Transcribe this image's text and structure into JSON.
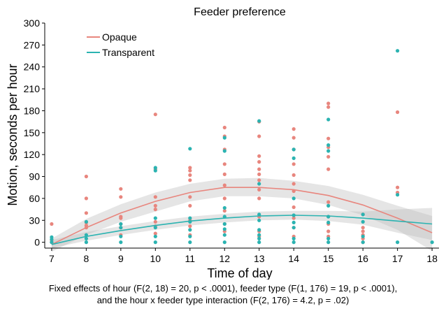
{
  "chart_data": {
    "type": "scatter",
    "title": "Feeder preference",
    "xlabel": "Time of day",
    "ylabel": "Motion, seconds per hour",
    "xlim": [
      6.8,
      18.2
    ],
    "ylim": [
      -8,
      300
    ],
    "xticks": [
      7,
      8,
      9,
      10,
      11,
      12,
      13,
      14,
      15,
      16,
      17,
      18
    ],
    "yticks": [
      0,
      30,
      60,
      90,
      120,
      150,
      180,
      210,
      240,
      270,
      300
    ],
    "grid": false,
    "legend_position": "top-left",
    "series": [
      {
        "name": "Opaque",
        "color": "#E8867E",
        "points": [
          [
            7,
            25
          ],
          [
            7,
            3
          ],
          [
            7,
            0
          ],
          [
            8,
            90
          ],
          [
            8,
            60
          ],
          [
            8,
            40
          ],
          [
            8,
            27
          ],
          [
            8,
            23
          ],
          [
            8,
            20
          ],
          [
            9,
            73
          ],
          [
            9,
            62
          ],
          [
            9,
            35
          ],
          [
            9,
            33
          ],
          [
            9,
            25
          ],
          [
            9,
            20
          ],
          [
            9,
            10
          ],
          [
            10,
            175
          ],
          [
            10,
            100
          ],
          [
            10,
            62
          ],
          [
            10,
            50
          ],
          [
            10,
            45
          ],
          [
            10,
            28
          ],
          [
            10,
            22
          ],
          [
            10,
            12
          ],
          [
            11,
            102
          ],
          [
            11,
            98
          ],
          [
            11,
            92
          ],
          [
            11,
            85
          ],
          [
            11,
            62
          ],
          [
            11,
            50
          ],
          [
            11,
            30
          ],
          [
            11,
            22
          ],
          [
            11,
            10
          ],
          [
            12,
            157
          ],
          [
            12,
            145
          ],
          [
            12,
            127
          ],
          [
            12,
            107
          ],
          [
            12,
            93
          ],
          [
            12,
            78
          ],
          [
            12,
            60
          ],
          [
            12,
            43
          ],
          [
            12,
            25
          ],
          [
            12,
            15
          ],
          [
            13,
            165
          ],
          [
            13,
            145
          ],
          [
            13,
            118
          ],
          [
            13,
            110
          ],
          [
            13,
            100
          ],
          [
            13,
            93
          ],
          [
            13,
            85
          ],
          [
            13,
            72
          ],
          [
            13,
            60
          ],
          [
            13,
            35
          ],
          [
            13,
            15
          ],
          [
            13,
            8
          ],
          [
            14,
            155
          ],
          [
            14,
            143
          ],
          [
            14,
            127
          ],
          [
            14,
            107
          ],
          [
            14,
            92
          ],
          [
            14,
            80
          ],
          [
            14,
            70
          ],
          [
            14,
            48
          ],
          [
            14,
            33
          ],
          [
            14,
            20
          ],
          [
            14,
            8
          ],
          [
            15,
            190
          ],
          [
            15,
            185
          ],
          [
            15,
            142
          ],
          [
            15,
            130
          ],
          [
            15,
            117
          ],
          [
            15,
            100
          ],
          [
            15,
            55
          ],
          [
            15,
            35
          ],
          [
            15,
            25
          ],
          [
            15,
            15
          ],
          [
            15,
            8
          ],
          [
            16,
            38
          ],
          [
            16,
            20
          ],
          [
            16,
            15
          ],
          [
            16,
            10
          ],
          [
            16,
            5
          ],
          [
            16,
            0
          ],
          [
            17,
            178
          ],
          [
            17,
            75
          ],
          [
            17,
            68
          ]
        ],
        "fit": [
          [
            7,
            -3
          ],
          [
            8,
            20
          ],
          [
            9,
            40
          ],
          [
            10,
            56
          ],
          [
            11,
            68
          ],
          [
            12,
            75
          ],
          [
            13,
            75
          ],
          [
            14,
            72
          ],
          [
            15,
            64
          ],
          [
            16,
            51
          ],
          [
            17,
            33
          ],
          [
            18,
            13
          ]
        ],
        "ci_lower": [
          [
            7,
            -13
          ],
          [
            8,
            10
          ],
          [
            9,
            28
          ],
          [
            10,
            42
          ],
          [
            11,
            56
          ],
          [
            12,
            63
          ],
          [
            13,
            63
          ],
          [
            14,
            60
          ],
          [
            15,
            51
          ],
          [
            16,
            37
          ],
          [
            17,
            17
          ],
          [
            18,
            -12
          ]
        ],
        "ci_upper": [
          [
            7,
            5
          ],
          [
            8,
            32
          ],
          [
            9,
            52
          ],
          [
            10,
            68
          ],
          [
            11,
            80
          ],
          [
            12,
            87
          ],
          [
            13,
            88
          ],
          [
            14,
            84
          ],
          [
            15,
            77
          ],
          [
            16,
            65
          ],
          [
            17,
            50
          ],
          [
            18,
            36
          ]
        ]
      },
      {
        "name": "Transparent",
        "color": "#2BB3B1",
        "points": [
          [
            7,
            7
          ],
          [
            7,
            4
          ],
          [
            7,
            0
          ],
          [
            8,
            28
          ],
          [
            8,
            10
          ],
          [
            8,
            5
          ],
          [
            8,
            0
          ],
          [
            9,
            25
          ],
          [
            9,
            20
          ],
          [
            9,
            8
          ],
          [
            9,
            0
          ],
          [
            10,
            102
          ],
          [
            10,
            98
          ],
          [
            10,
            33
          ],
          [
            10,
            20
          ],
          [
            10,
            8
          ],
          [
            10,
            0
          ],
          [
            11,
            128
          ],
          [
            11,
            33
          ],
          [
            11,
            28
          ],
          [
            11,
            17
          ],
          [
            11,
            8
          ],
          [
            11,
            0
          ],
          [
            12,
            143
          ],
          [
            12,
            125
          ],
          [
            12,
            47
          ],
          [
            12,
            35
          ],
          [
            12,
            25
          ],
          [
            12,
            18
          ],
          [
            12,
            10
          ],
          [
            12,
            0
          ],
          [
            13,
            166
          ],
          [
            13,
            80
          ],
          [
            13,
            38
          ],
          [
            13,
            30
          ],
          [
            13,
            17
          ],
          [
            13,
            10
          ],
          [
            13,
            5
          ],
          [
            13,
            0
          ],
          [
            14,
            127
          ],
          [
            14,
            115
          ],
          [
            14,
            60
          ],
          [
            14,
            37
          ],
          [
            14,
            27
          ],
          [
            14,
            20
          ],
          [
            14,
            5
          ],
          [
            14,
            0
          ],
          [
            15,
            168
          ],
          [
            15,
            133
          ],
          [
            15,
            125
          ],
          [
            15,
            50
          ],
          [
            15,
            35
          ],
          [
            15,
            27
          ],
          [
            15,
            5
          ],
          [
            15,
            0
          ],
          [
            16,
            38
          ],
          [
            16,
            28
          ],
          [
            16,
            8
          ],
          [
            16,
            0
          ],
          [
            17,
            262
          ],
          [
            17,
            65
          ],
          [
            17,
            0
          ],
          [
            18,
            0
          ]
        ],
        "fit": [
          [
            7,
            -3
          ],
          [
            8,
            8
          ],
          [
            9,
            16
          ],
          [
            10,
            23
          ],
          [
            11,
            29
          ],
          [
            12,
            33
          ],
          [
            13,
            36
          ],
          [
            14,
            37
          ],
          [
            15,
            36
          ],
          [
            16,
            33
          ],
          [
            17,
            29
          ],
          [
            18,
            25
          ]
        ],
        "ci_lower": [
          [
            7,
            -8
          ],
          [
            8,
            2
          ],
          [
            9,
            10
          ],
          [
            10,
            17
          ],
          [
            11,
            23
          ],
          [
            12,
            27
          ],
          [
            13,
            30
          ],
          [
            14,
            31
          ],
          [
            15,
            29
          ],
          [
            16,
            24
          ],
          [
            17,
            13
          ],
          [
            18,
            3
          ]
        ],
        "ci_upper": [
          [
            7,
            3
          ],
          [
            8,
            14
          ],
          [
            9,
            22
          ],
          [
            10,
            29
          ],
          [
            11,
            35
          ],
          [
            12,
            39
          ],
          [
            13,
            42
          ],
          [
            14,
            43
          ],
          [
            15,
            43
          ],
          [
            16,
            42
          ],
          [
            17,
            45
          ],
          [
            18,
            47
          ]
        ]
      }
    ]
  },
  "caption": {
    "line1": "Fixed effects of hour (F(2, 18) = 20, p < .0001), feeder type (F(1, 176) = 19, p < .0001),",
    "line2": "and the hour x feeder type interaction (F(2, 176) = 4.2, p = .02)"
  }
}
